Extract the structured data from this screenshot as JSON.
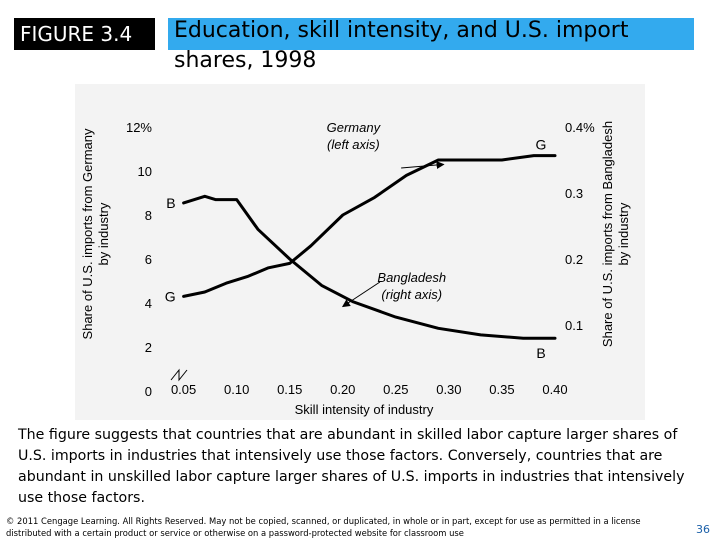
{
  "figure_label": "FIGURE 3.4",
  "title": "Education, skill intensity, and U.S. import shares, 1998",
  "caption": "The figure suggests that countries that are abundant in skilled labor capture larger shares of U.S. imports in industries that intensively use those factors. Conversely, countries that are abundant in unskilled labor capture larger shares of U.S. imports in industries that intensively use those factors.",
  "copyright": "© 2011 Cengage Learning. All Rights Reserved. May not be copied, scanned, or duplicated, in whole or in part, except for use as permitted in a license distributed with a certain product or service or otherwise on a password-protected website for classroom use",
  "page_number": "36",
  "chart_data": {
    "type": "line",
    "xlabel": "Skill intensity of industry",
    "xlim": [
      0.04,
      0.4
    ],
    "xticks": [
      "0.05",
      "0.10",
      "0.15",
      "0.20",
      "0.25",
      "0.30",
      "0.35",
      "0.40"
    ],
    "xtick_values": [
      0.05,
      0.1,
      0.15,
      0.2,
      0.25,
      0.3,
      0.35,
      0.4
    ],
    "ylabel_left": "Share of U.S. imports from Germany, by industry",
    "ylim_left": [
      0,
      12
    ],
    "yticks_left": [
      "0",
      "2",
      "4",
      "6",
      "8",
      "10",
      "12%"
    ],
    "ytick_values_left": [
      0,
      2,
      4,
      6,
      8,
      10,
      12
    ],
    "ylabel_right": "Share of U.S. imports from Bangladesh, by industry",
    "ylim_right": [
      0,
      0.4
    ],
    "yticks_right": [
      "0.1",
      "0.2",
      "0.3",
      "0.4%"
    ],
    "ytick_values_right": [
      0.1,
      0.2,
      0.3,
      0.4
    ],
    "series": [
      {
        "name": "Germany",
        "axis": "left",
        "color": "#000000",
        "annotation": "Germany\n(left axis)",
        "start_marker": "G",
        "end_marker": "G",
        "x": [
          0.05,
          0.07,
          0.09,
          0.11,
          0.13,
          0.15,
          0.17,
          0.2,
          0.23,
          0.26,
          0.29,
          0.32,
          0.35,
          0.38,
          0.4
        ],
        "y": [
          4.3,
          4.5,
          4.9,
          5.2,
          5.6,
          5.8,
          6.6,
          8.0,
          8.8,
          9.8,
          10.5,
          10.5,
          10.5,
          10.7,
          10.7
        ]
      },
      {
        "name": "Bangladesh",
        "axis": "right",
        "color": "#000000",
        "annotation": "Bangladesh\n(right axis)",
        "start_marker": "B",
        "end_marker": "B",
        "x": [
          0.05,
          0.07,
          0.08,
          0.1,
          0.12,
          0.15,
          0.18,
          0.21,
          0.25,
          0.29,
          0.33,
          0.37,
          0.4
        ],
        "y": [
          0.285,
          0.295,
          0.29,
          0.29,
          0.245,
          0.2,
          0.16,
          0.135,
          0.112,
          0.095,
          0.085,
          0.08,
          0.08
        ]
      }
    ]
  }
}
